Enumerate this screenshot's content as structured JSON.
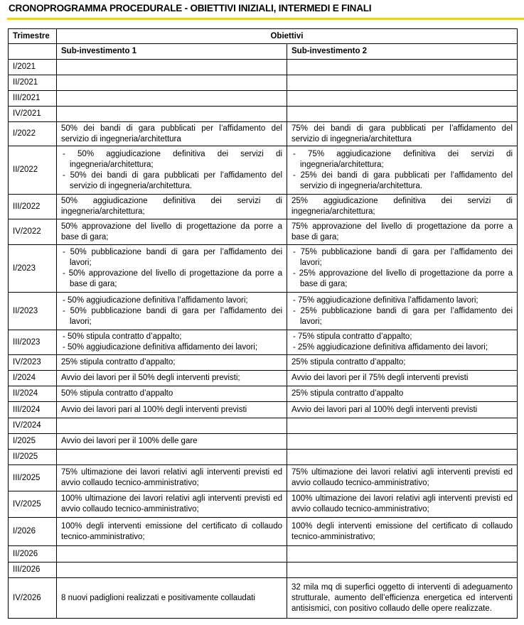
{
  "title": "CRONOPROGRAMMA PROCEDURALE - OBIETTIVI INIZIALI, INTERMEDI E FINALI",
  "accent_color": "#f5d300",
  "header": {
    "trimestre": "Trimestre",
    "obiettivi": "Obiettivi",
    "sub1": "Sub-investimento 1",
    "sub2": "Sub-investimento 2"
  },
  "rows": [
    {
      "q": "I/2021",
      "s1": [],
      "s2": []
    },
    {
      "q": "II/2021",
      "s1": [],
      "s2": []
    },
    {
      "q": "III/2021",
      "s1": [],
      "s2": []
    },
    {
      "q": "IV/2021",
      "s1": [],
      "s2": []
    },
    {
      "q": "I/2022",
      "s1": [
        "50% dei bandi di gara pubblicati per l’affidamento del servizio di ingegneria/architettura"
      ],
      "s2": [
        "75% dei bandi di gara pubblicati per l’affidamento del servizio di ingegneria/architettura"
      ]
    },
    {
      "q": "II/2022",
      "list": true,
      "s1": [
        "- 50% aggiudicazione definitiva dei servizi di ingegneria/architettura;",
        "- 50% dei bandi di gara pubblicati per l’affidamento del servizio di ingegneria/architettura."
      ],
      "s2": [
        "- 75% aggiudicazione definitiva dei servizi di ingegneria/architettura;",
        "- 25% dei bandi di gara pubblicati per l’affidamento del servizio di ingegneria/architettura."
      ]
    },
    {
      "q": "III/2022",
      "s1": [
        "50% aggiudicazione definitiva dei servizi di ingegneria/architettura;"
      ],
      "s2": [
        "25% aggiudicazione definitiva dei servizi di ingegneria/architettura;"
      ]
    },
    {
      "q": "IV/2022",
      "s1": [
        "50% approvazione del livello di progettazione da porre a base di gara;"
      ],
      "s2": [
        "75% approvazione del livello di progettazione da porre a base di gara;"
      ]
    },
    {
      "q": "I/2023",
      "list": true,
      "s1": [
        "- 50% pubblicazione bandi di gara per l’affidamento dei lavori;",
        "- 50% approvazione del livello di progettazione da porre a base di gara;"
      ],
      "s2": [
        "- 75% pubblicazione bandi di gara per l’affidamento dei lavori;",
        "- 25% approvazione del livello di progettazione da porre a base di gara;"
      ]
    },
    {
      "q": "II/2023",
      "list": true,
      "s1": [
        "- 50% aggiudicazione definitiva l’affidamento lavori;",
        "- 50% pubblicazione bandi di gara per l’affidamento dei lavori;"
      ],
      "s2": [
        "- 75% aggiudicazione definitiva l’affidamento lavori;",
        "- 25% pubblicazione bandi di gara per l’affidamento dei lavori;"
      ]
    },
    {
      "q": "III/2023",
      "list": true,
      "s1": [
        "- 50% stipula contratto d’appalto;",
        "- 50% aggiudicazione definitiva affidamento dei lavori;"
      ],
      "s2": [
        "- 75% stipula contratto d’appalto;",
        "- 25% aggiudicazione definitiva affidamento dei lavori;"
      ]
    },
    {
      "q": "IV/2023",
      "s1": [
        "25% stipula contratto d’appalto;"
      ],
      "s2": [
        "25% stipula contratto d’appalto;"
      ]
    },
    {
      "q": "I/2024",
      "s1": [
        "Avvio dei lavori per il 50% degli interventi previsti;"
      ],
      "s2": [
        "Avvio dei lavori per il 75% degli interventi previsti"
      ]
    },
    {
      "q": "II/2024",
      "s1": [
        "50% stipula contratto d’appalto"
      ],
      "s2": [
        "25% stipula contratto d’appalto"
      ]
    },
    {
      "q": "III/2024",
      "s1": [
        "Avvio dei lavori pari al 100% degli interventi previsti"
      ],
      "s2": [
        "Avvio dei lavori pari al 100% degli interventi previsti"
      ]
    },
    {
      "q": "IV/2024",
      "s1": [],
      "s2": []
    },
    {
      "q": "I/2025",
      "s1": [
        "Avvio dei lavori per il 100% delle gare"
      ],
      "s2": []
    },
    {
      "q": "II/2025",
      "s1": [],
      "s2": []
    },
    {
      "q": "III/2025",
      "s1": [
        "75% ultimazione dei lavori relativi agli interventi previsti ed avvio collaudo tecnico-amministrativo;"
      ],
      "s2": [
        "75% ultimazione dei lavori relativi agli interventi previsti ed avvio collaudo tecnico-amministrativo;"
      ]
    },
    {
      "q": "IV/2025",
      "s1": [
        "100% ultimazione dei lavori relativi agli interventi previsti ed avvio collaudo tecnico-amministrativo;"
      ],
      "s2": [
        "100% ultimazione dei lavori relativi agli interventi previsti ed avvio collaudo tecnico-amministrativo;"
      ]
    },
    {
      "q": "I/2026",
      "s1": [
        "100% degli interventi emissione del certificato di collaudo tecnico-amministrativo;"
      ],
      "s2": [
        "100% degli interventi emissione del certificato di collaudo tecnico-amministrativo;"
      ]
    },
    {
      "q": "II/2026",
      "s1": [],
      "s2": []
    },
    {
      "q": "III/2026",
      "s1": [],
      "s2": []
    },
    {
      "q": "IV/2026",
      "s1": [
        "8 nuovi padiglioni realizzati e positivamente collaudati"
      ],
      "s2": [
        "32 mila mq di superfici oggetto di interventi di adeguamento strutturale, aumento dell’efficienza energetica ed interventi antisismici, con positivo collaudo delle opere realizzate."
      ]
    }
  ]
}
